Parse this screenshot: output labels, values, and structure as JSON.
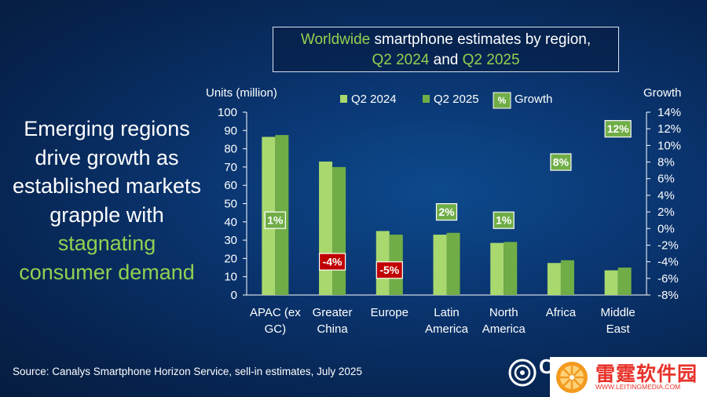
{
  "title": {
    "part1_highlight": "Worldwide",
    "part1_rest": " smartphone estimates by region,",
    "q2024": "Q2 2024",
    "and": " and ",
    "q2025": "Q2 2025"
  },
  "headline": {
    "plain": "Emerging regions drive growth as established markets grapple with ",
    "highlight": "stagnating consumer demand"
  },
  "source": "Source: Canalys Smartphone Horizon Service, sell-in estimates, July 2025",
  "logo": {
    "text": "C",
    "icon": "canalys-logo-icon"
  },
  "watermark": {
    "text": "雷霆软件园",
    "url": "WWW.LEITINGMEDIA.COM",
    "icon": "orange-slice-icon"
  },
  "colors": {
    "q2024": "#a9d86e",
    "q2025": "#70ad47",
    "growth_positive": "#70ad47",
    "growth_negative": "#c00000",
    "text": "#ffffff"
  },
  "chart_data": {
    "type": "bar",
    "title": "Worldwide smartphone estimates by region, Q2 2024 and Q2 2025",
    "ylabel": "Units (million)",
    "y2label": "Growth",
    "ylim": [
      0,
      100
    ],
    "yticks": [
      0,
      10,
      20,
      30,
      40,
      50,
      60,
      70,
      80,
      90,
      100
    ],
    "y2lim": [
      -8,
      14
    ],
    "y2ticks": [
      "-8%",
      "-6%",
      "-4%",
      "-2%",
      "0%",
      "2%",
      "4%",
      "6%",
      "8%",
      "10%",
      "12%",
      "14%"
    ],
    "categories": [
      [
        "APAC (ex",
        "GC)"
      ],
      [
        "Greater",
        "China"
      ],
      [
        "Europe"
      ],
      [
        "Latin",
        "America"
      ],
      [
        "North",
        "America"
      ],
      [
        "Africa"
      ],
      [
        "Middle",
        "East"
      ]
    ],
    "series": [
      {
        "name": "Q2 2024",
        "values": [
          86.5,
          73,
          35,
          33,
          28.5,
          17.5,
          13.5
        ]
      },
      {
        "name": "Q2 2025",
        "values": [
          87.5,
          70,
          33,
          34,
          29,
          19,
          15
        ]
      }
    ],
    "growth": {
      "name": "Growth",
      "legend_symbol": "%",
      "values": [
        1,
        -4,
        -5,
        2,
        1,
        8,
        12
      ],
      "labels": [
        "1%",
        "-4%",
        "-5%",
        "2%",
        "1%",
        "8%",
        "12%"
      ]
    },
    "grid": false,
    "legend": "top"
  }
}
